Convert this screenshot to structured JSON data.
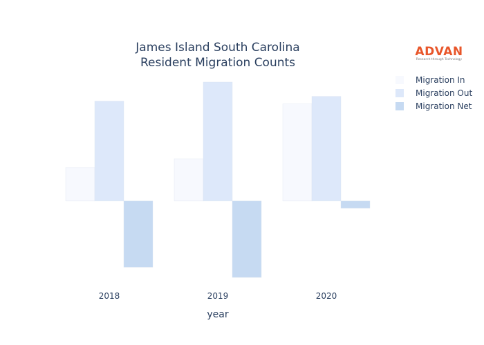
{
  "chart_data": {
    "type": "bar",
    "title": "James Island South Carolina",
    "subtitle": "Resident Migration Counts",
    "xlabel": "year",
    "ylabel": "",
    "categories": [
      "2018",
      "2019",
      "2020"
    ],
    "series": [
      {
        "name": "Migration In",
        "values": [
          49,
          62,
          143
        ],
        "color": "#f7f9fe"
      },
      {
        "name": "Migration Out",
        "values": [
          147,
          175,
          154
        ],
        "color": "#dde8fa"
      },
      {
        "name": "Migration Net",
        "values": [
          -98,
          -113,
          -11
        ],
        "color": "#c6daf2"
      }
    ],
    "ylim": [
      -115,
      178
    ],
    "grid": false,
    "legend_position": "top-right",
    "value_note": "relative units; y-axis not labeled"
  },
  "logo": {
    "text": "ADVAN",
    "tagline": "Research through Technology"
  }
}
